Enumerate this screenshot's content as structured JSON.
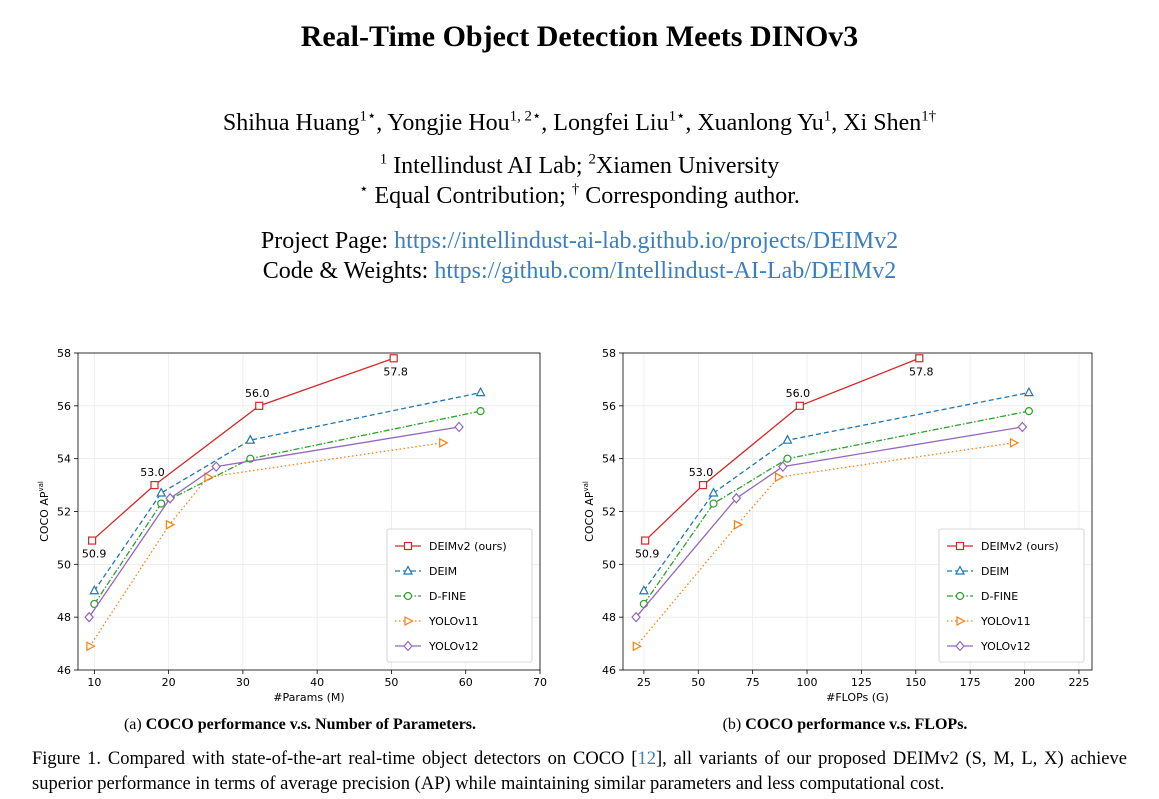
{
  "title": "Real-Time Object Detection Meets DINOv3",
  "authors": [
    {
      "text": "Shihua Huang"
    },
    {
      "text": "1⋆",
      "sup": true
    },
    {
      "text": ", Yongjie Hou"
    },
    {
      "text": "1, 2⋆",
      "sup": true
    },
    {
      "text": ", Longfei Liu"
    },
    {
      "text": "1⋆",
      "sup": true
    },
    {
      "text": ", Xuanlong Yu"
    },
    {
      "text": "1",
      "sup": true
    },
    {
      "text": ", Xi Shen"
    },
    {
      "text": "1†",
      "sup": true
    }
  ],
  "affiliations": [
    [
      {
        "text": "1",
        "sup": true
      },
      {
        "text": " Intellindust AI Lab; "
      },
      {
        "text": "2",
        "sup": true
      },
      {
        "text": "Xiamen University"
      }
    ],
    [
      {
        "text": "⋆",
        "sup": true
      },
      {
        "text": " Equal Contribution; "
      },
      {
        "text": "†",
        "sup": true
      },
      {
        "text": " Corresponding author."
      }
    ]
  ],
  "links": [
    {
      "label": "Project Page:",
      "url": "https://intellindust-ai-lab.github.io/projects/DEIMv2"
    },
    {
      "label": "Code & Weights:",
      "url": "https://github.com/Intellindust-AI-Lab/DEIMv2"
    }
  ],
  "chart_data": [
    {
      "type": "line",
      "caption_label": "(a)",
      "caption": "COCO performance v.s. Number of Parameters.",
      "xlabel": "#Params (M)",
      "ylabel": "COCO AP",
      "ylabel_sup": "val",
      "xlim": [
        7.8,
        70
      ],
      "xticks": [
        10,
        20,
        30,
        40,
        50,
        60,
        70
      ],
      "ylim": [
        46,
        58
      ],
      "yticks": [
        46,
        48,
        50,
        52,
        54,
        56,
        58
      ],
      "grid": true,
      "legend": "lower right",
      "series": [
        {
          "name": "DEIMv2 (ours)",
          "color": "#d62728",
          "marker": "square",
          "line": "solid",
          "x": [
            9.7,
            18.1,
            32.2,
            50.3
          ],
          "values": [
            50.9,
            53.0,
            56.0,
            57.8
          ],
          "value_labels": [
            "50.9",
            "53.0",
            "56.0",
            "57.8"
          ]
        },
        {
          "name": "DEIM",
          "color": "#1f77b4",
          "marker": "triangle",
          "line": "dashed",
          "x": [
            10,
            19,
            31,
            62
          ],
          "values": [
            49.0,
            52.7,
            54.7,
            56.5
          ]
        },
        {
          "name": "D-FINE",
          "color": "#2ca02c",
          "marker": "circle",
          "line": "dashdot",
          "x": [
            10,
            19,
            31,
            62
          ],
          "values": [
            48.5,
            52.3,
            54.0,
            55.8
          ]
        },
        {
          "name": "YOLOv11",
          "color": "#ff7f0e",
          "marker": "triangle-right",
          "line": "dotted",
          "x": [
            9.4,
            20.1,
            25.3,
            56.9
          ],
          "values": [
            46.9,
            51.5,
            53.3,
            54.6
          ]
        },
        {
          "name": "YOLOv12",
          "color": "#9467bd",
          "marker": "diamond",
          "line": "solid",
          "x": [
            9.3,
            20.2,
            26.4,
            59.1
          ],
          "values": [
            48.0,
            52.5,
            53.7,
            55.2
          ]
        }
      ]
    },
    {
      "type": "line",
      "caption_label": "(b)",
      "caption": "COCO performance v.s. FLOPs.",
      "xlabel": "#FLOPs (G)",
      "ylabel": "COCO AP",
      "ylabel_sup": "val",
      "xlim": [
        15.4,
        231
      ],
      "xticks": [
        25,
        50,
        75,
        100,
        125,
        150,
        175,
        200,
        225
      ],
      "ylim": [
        46,
        58
      ],
      "yticks": [
        46,
        48,
        50,
        52,
        54,
        56,
        58
      ],
      "grid": true,
      "legend": "lower right",
      "series": [
        {
          "name": "DEIMv2 (ours)",
          "color": "#d62728",
          "marker": "square",
          "line": "solid",
          "x": [
            25.6,
            52.2,
            96.7,
            151.6
          ],
          "values": [
            50.9,
            53.0,
            56.0,
            57.8
          ],
          "value_labels": [
            "50.9",
            "53.0",
            "56.0",
            "57.8"
          ]
        },
        {
          "name": "DEIM",
          "color": "#1f77b4",
          "marker": "triangle",
          "line": "dashed",
          "x": [
            25,
            57,
            91,
            202
          ],
          "values": [
            49.0,
            52.7,
            54.7,
            56.5
          ]
        },
        {
          "name": "D-FINE",
          "color": "#2ca02c",
          "marker": "circle",
          "line": "dashdot",
          "x": [
            25,
            57,
            91,
            202
          ],
          "values": [
            48.5,
            52.3,
            54.0,
            55.8
          ]
        },
        {
          "name": "YOLOv11",
          "color": "#ff7f0e",
          "marker": "triangle-right",
          "line": "dotted",
          "x": [
            21.5,
            68,
            86.9,
            194.9
          ],
          "values": [
            46.9,
            51.5,
            53.3,
            54.6
          ]
        },
        {
          "name": "YOLOv12",
          "color": "#9467bd",
          "marker": "diamond",
          "line": "solid",
          "x": [
            21.4,
            67.5,
            88.9,
            199
          ],
          "values": [
            48.0,
            52.5,
            53.7,
            55.2
          ]
        }
      ]
    }
  ],
  "figure_caption": [
    {
      "text": "Figure 1.  Compared with state-of-the-art real-time object detectors on COCO ["
    },
    {
      "text": "12",
      "link": true
    },
    {
      "text": "], all variants of our proposed DEIMv2 (S, M, L, X) achieve superior performance in terms of average precision (AP) while maintaining similar parameters and less computational cost."
    }
  ]
}
